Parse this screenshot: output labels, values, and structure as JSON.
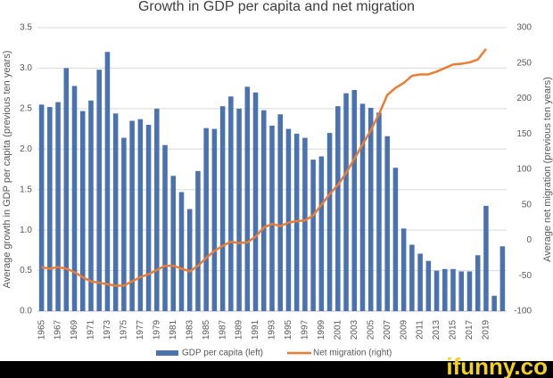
{
  "chart_data": {
    "type": "bar",
    "title": "Growth in GDP per capita and net migration",
    "y_label": "Average growth in GDP per capita (previous ten years)",
    "y2_label": "Average net migration (previous ten years)",
    "categories": [
      "1965",
      null,
      "1967",
      null,
      "1969",
      null,
      "1971",
      null,
      "1973",
      null,
      "1975",
      null,
      "1977",
      null,
      "1979",
      null,
      "1981",
      null,
      "1983",
      null,
      "1985",
      null,
      "1987",
      null,
      "1989",
      null,
      "1991",
      null,
      "1993",
      null,
      "1995",
      null,
      "1997",
      null,
      "1999",
      null,
      "2001",
      null,
      "2003",
      null,
      "2005",
      null,
      "2007",
      null,
      "2009",
      null,
      "2011",
      null,
      "2013",
      null,
      "2015",
      null,
      "2017",
      null,
      "2019",
      null,
      null
    ],
    "series": [
      {
        "name": "GDP per capita (left)",
        "color": "#4a72b0",
        "axis": "y",
        "values": [
          2.55,
          2.52,
          2.58,
          3.0,
          2.78,
          2.47,
          2.6,
          2.98,
          3.2,
          2.44,
          2.14,
          2.35,
          2.37,
          2.3,
          2.5,
          2.05,
          1.67,
          1.47,
          1.26,
          1.73,
          2.26,
          2.25,
          2.53,
          2.65,
          2.5,
          2.77,
          2.7,
          2.48,
          2.29,
          2.43,
          2.25,
          2.19,
          2.14,
          1.87,
          1.91,
          2.2,
          2.53,
          2.69,
          2.73,
          2.56,
          2.51,
          2.45,
          2.16,
          1.77,
          1.02,
          0.82,
          0.71,
          0.62,
          0.5,
          0.52,
          0.52,
          0.49,
          0.49,
          0.69,
          1.3,
          0.19,
          0.8
        ]
      },
      {
        "name": "Net migration (right)",
        "color": "#ed7d31",
        "axis": "y2",
        "type": "line",
        "values": [
          -38,
          -40,
          -38,
          -40,
          -45,
          -52,
          -58,
          -60,
          -62,
          -64,
          -64,
          -58,
          -52,
          -48,
          -42,
          -36,
          -36,
          -40,
          -44,
          -36,
          -25,
          -15,
          -8,
          -2,
          -4,
          -3,
          5,
          18,
          23,
          20,
          25,
          27,
          28,
          35,
          50,
          65,
          78,
          95,
          115,
          135,
          155,
          178,
          205,
          215,
          222,
          232,
          234,
          234,
          238,
          243,
          248,
          249,
          251,
          255,
          270,
          null,
          null
        ]
      }
    ],
    "ylim": [
      0,
      3.5
    ],
    "yticks": [
      {
        "value": 0,
        "label": "0.0"
      },
      0.5,
      {
        "value": 1,
        "label": "1.0"
      },
      1.5,
      {
        "value": 2,
        "label": "2.0"
      },
      2.5,
      {
        "value": 3,
        "label": "3.0"
      },
      3.5
    ],
    "y2lim": [
      -100,
      300
    ],
    "y2ticks": [
      -100,
      -50,
      0,
      50,
      100,
      150,
      200,
      250,
      300
    ],
    "grid": true,
    "legend": "bottom",
    "watermark": "ifunny.co"
  }
}
